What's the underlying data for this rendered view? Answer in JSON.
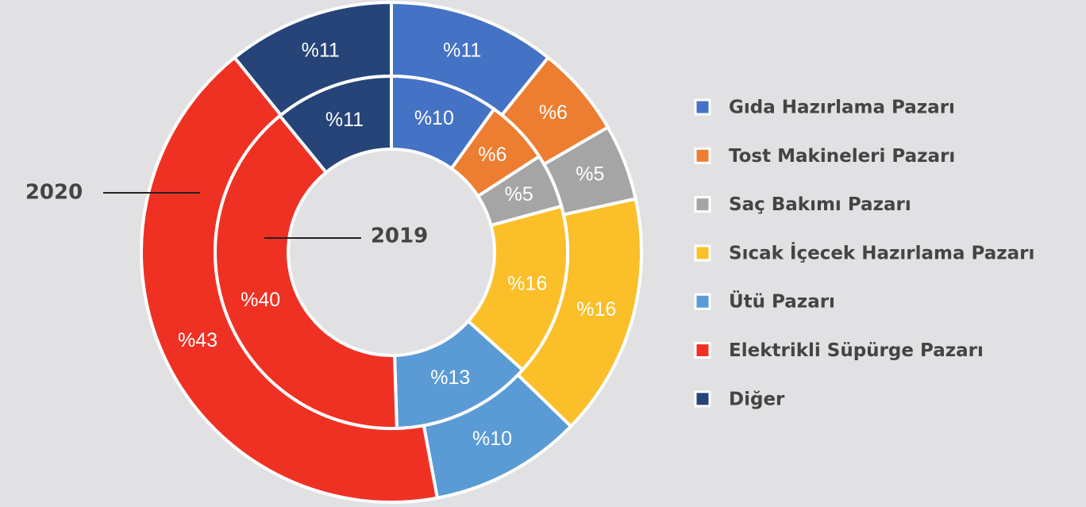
{
  "chart_data": {
    "type": "donut",
    "categories": [
      "Gıda Hazırlama Pazarı",
      "Tost Makineleri Pazarı",
      "Saç Bakımı Pazarı",
      "Sıcak İçecek Hazırlama Pazarı",
      "Ütü Pazarı",
      "Elektrikli Süpürge Pazarı",
      "Diğer"
    ],
    "colors": [
      "#4472c4",
      "#ed7d31",
      "#a5a5a5",
      "#fbbf2a",
      "#5b9bd5",
      "#ef3124",
      "#264478"
    ],
    "series": [
      {
        "name": "2020",
        "values": [
          11,
          6,
          5,
          16,
          10,
          43,
          11
        ],
        "value_labels": [
          "%11",
          "%6",
          "%5",
          "%16",
          "%10",
          "%43",
          "%11"
        ]
      },
      {
        "name": "2019",
        "values": [
          10,
          6,
          5,
          16,
          13,
          40,
          11
        ],
        "value_labels": [
          "%10",
          "%6",
          "%5",
          "%16",
          "%13",
          "%40",
          "%11"
        ]
      }
    ],
    "legend": "right"
  }
}
